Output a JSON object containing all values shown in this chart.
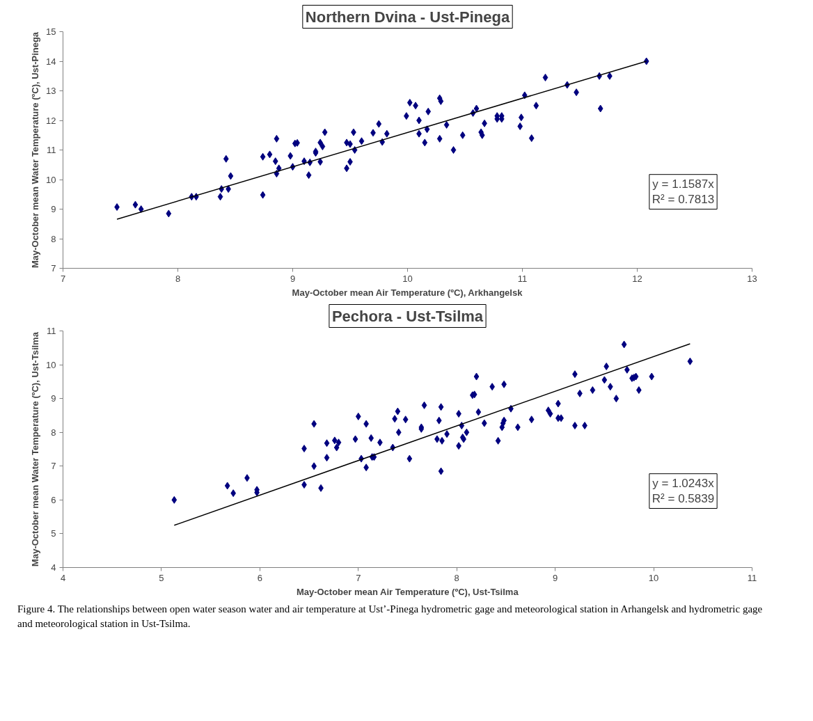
{
  "chart_data": [
    {
      "type": "scatter",
      "title": "Northern Dvina - Ust-Pinega",
      "xlabel": "May-October mean Air Temperature (ºC), Arkhangelsk",
      "ylabel": "May-October mean Water Temperature (ºC), Ust-Pinega",
      "xlim": [
        7,
        13
      ],
      "xticks": [
        7,
        8,
        9,
        10,
        11,
        12,
        13
      ],
      "ylim": [
        7,
        15
      ],
      "yticks": [
        7,
        8,
        9,
        10,
        11,
        12,
        13,
        14,
        15
      ],
      "grid": false,
      "marker": "diamond",
      "annotations": [
        "y = 1.1587x",
        "R² = 0.7813"
      ],
      "series": [
        {
          "color": "#00007f",
          "x": [
            7.47,
            7.63,
            7.68,
            7.92,
            8.12,
            8.16,
            8.37,
            8.38,
            8.42,
            8.44,
            8.46,
            8.74,
            8.74,
            8.8,
            8.85,
            8.86,
            8.86,
            8.88,
            8.98,
            9.0,
            9.02,
            9.04,
            9.1,
            9.14,
            9.15,
            9.2,
            9.2,
            9.24,
            9.24,
            9.26,
            9.28,
            9.47,
            9.47,
            9.5,
            9.5,
            9.53,
            9.54,
            9.6,
            9.7,
            9.75,
            9.78,
            9.82,
            9.99,
            10.02,
            10.07,
            10.1,
            10.1,
            10.15,
            10.17,
            10.18,
            10.28,
            10.29,
            10.28,
            10.34,
            10.4,
            10.48,
            10.57,
            10.6,
            10.64,
            10.65,
            10.67,
            10.78,
            10.78,
            10.82,
            10.82,
            10.98,
            10.99,
            11.02,
            11.08,
            11.12,
            11.2,
            11.39,
            11.47,
            11.67,
            11.68,
            11.76,
            12.08
          ],
          "values": [
            9.07,
            9.15,
            9.0,
            8.85,
            9.42,
            9.42,
            9.42,
            9.68,
            10.7,
            9.68,
            10.12,
            10.77,
            9.48,
            10.85,
            10.62,
            11.38,
            10.2,
            10.38,
            10.8,
            10.43,
            11.22,
            11.24,
            10.62,
            10.15,
            10.58,
            10.9,
            10.95,
            11.25,
            10.6,
            11.12,
            11.6,
            10.38,
            11.25,
            10.6,
            11.2,
            11.6,
            11.0,
            11.3,
            11.58,
            11.88,
            11.27,
            11.55,
            12.15,
            12.6,
            12.5,
            12.0,
            11.55,
            11.25,
            11.7,
            12.3,
            12.75,
            12.65,
            11.38,
            11.85,
            11.0,
            11.5,
            12.25,
            12.4,
            11.6,
            11.5,
            11.9,
            12.05,
            12.15,
            12.05,
            12.15,
            11.8,
            12.1,
            12.85,
            11.4,
            12.5,
            13.45,
            13.2,
            12.95,
            13.5,
            12.4,
            13.5,
            14.0
          ]
        },
        {
          "type": "line",
          "color": "#000000",
          "marker": "none",
          "x": [
            7.47,
            12.08
          ],
          "values": [
            8.66,
            14.0
          ]
        }
      ]
    },
    {
      "type": "scatter",
      "title": "Pechora - Ust-Tsilma",
      "xlabel": "May-October mean Air Temperature (ºC), Ust-Tsilma",
      "ylabel": "May-October mean Water Temperature (ºC), Ust-Tsilma",
      "xlim": [
        4,
        11
      ],
      "xticks": [
        4,
        5,
        6,
        7,
        8,
        9,
        10,
        11
      ],
      "ylim": [
        4,
        11
      ],
      "yticks": [
        4,
        5,
        6,
        7,
        8,
        9,
        10,
        11
      ],
      "grid": false,
      "marker": "diamond",
      "annotations": [
        "y = 1.0243x",
        "R² = 0.5839",
        "Figure 4. The relationships between open water season water and air temperature at Ust’-Pinega hydrometric gage and meteorological station in Arhangelsk and hydrometric gage and meteorological station in Ust-Tsilma."
      ],
      "series": [
        {
          "color": "#00007f",
          "x": [
            5.13,
            5.67,
            5.73,
            5.87,
            5.97,
            5.97,
            6.45,
            6.45,
            6.55,
            6.55,
            6.62,
            6.68,
            6.68,
            6.76,
            6.78,
            6.8,
            6.97,
            7.0,
            7.03,
            7.08,
            7.08,
            7.13,
            7.14,
            7.16,
            7.22,
            7.35,
            7.37,
            7.4,
            7.41,
            7.48,
            7.52,
            7.64,
            7.67,
            7.64,
            7.8,
            7.82,
            7.84,
            7.85,
            7.84,
            7.9,
            8.02,
            8.02,
            8.05,
            8.07,
            8.06,
            8.1,
            8.16,
            8.18,
            8.2,
            8.22,
            8.28,
            8.36,
            8.42,
            8.46,
            8.47,
            8.48,
            8.48,
            8.55,
            8.62,
            8.76,
            8.93,
            8.95,
            9.03,
            9.03,
            9.06,
            9.2,
            9.2,
            9.25,
            9.3,
            9.38,
            9.5,
            9.52,
            9.56,
            9.62,
            9.7,
            9.73,
            9.78,
            9.8,
            9.82,
            9.85,
            9.98,
            10.37
          ],
          "values": [
            6.0,
            6.42,
            6.2,
            6.65,
            6.3,
            6.22,
            7.52,
            6.45,
            7.0,
            8.25,
            6.35,
            7.68,
            7.25,
            7.76,
            7.55,
            7.7,
            7.8,
            8.47,
            7.22,
            8.25,
            6.96,
            7.83,
            7.27,
            7.27,
            7.7,
            7.55,
            8.4,
            8.62,
            8.0,
            8.38,
            7.22,
            8.1,
            8.8,
            8.15,
            7.8,
            8.35,
            8.75,
            7.75,
            6.85,
            7.95,
            8.55,
            7.6,
            8.2,
            7.8,
            7.85,
            8.0,
            9.1,
            9.12,
            9.65,
            8.6,
            8.27,
            9.35,
            7.75,
            8.15,
            8.27,
            8.35,
            9.42,
            8.7,
            8.15,
            8.38,
            8.65,
            8.55,
            8.85,
            8.42,
            8.42,
            9.72,
            8.2,
            9.15,
            8.2,
            9.25,
            9.55,
            9.95,
            9.35,
            9.0,
            10.6,
            9.85,
            9.6,
            9.62,
            9.65,
            9.25,
            9.65,
            10.1
          ]
        },
        {
          "type": "line",
          "color": "#000000",
          "marker": "none",
          "x": [
            5.13,
            10.37
          ],
          "values": [
            5.25,
            10.62
          ]
        }
      ]
    }
  ]
}
